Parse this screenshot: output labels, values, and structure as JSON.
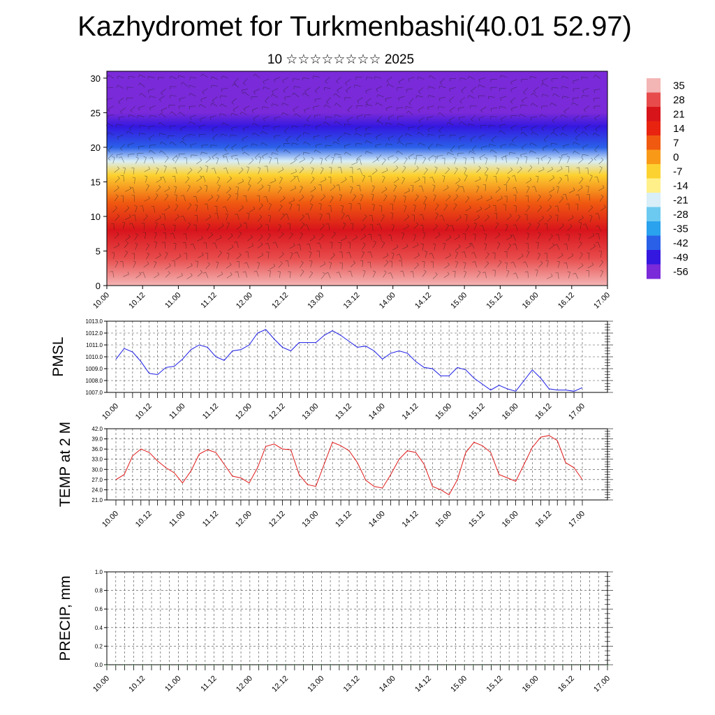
{
  "title": "Kazhydromet for Turkmenbashi(40.01 52.97)",
  "subtitle": "10 ☆☆☆☆☆☆☆☆ 2025",
  "time_ticks": [
    "10.00",
    "10.12",
    "11.00",
    "11.12",
    "12.00",
    "12.12",
    "13.00",
    "13.12",
    "14.00",
    "14.12",
    "15.00",
    "15.12",
    "16.00",
    "16.12",
    "17.00"
  ],
  "chart_data": [
    {
      "type": "heatmap",
      "title": "",
      "ylabel": "",
      "ylim": [
        0,
        31
      ],
      "yticks": [
        "0",
        "5",
        "10",
        "15",
        "20",
        "25",
        "30"
      ],
      "colorbar": {
        "labels": [
          "35",
          "28",
          "21",
          "14",
          "7",
          "0",
          "-7",
          "-14",
          "-21",
          "-28",
          "-35",
          "-42",
          "-49",
          "-56"
        ],
        "colors": [
          "#f4b5b5",
          "#e84b4b",
          "#d8141b",
          "#e82410",
          "#f05a10",
          "#f89a18",
          "#fcd230",
          "#fff08a",
          "#d8eef8",
          "#6ccaf0",
          "#2aa2ee",
          "#2a60e8",
          "#3418e0",
          "#7a2ad8"
        ]
      },
      "level_temperatures": [
        [
          0,
          33
        ],
        [
          4,
          30
        ],
        [
          8,
          20
        ],
        [
          12,
          5
        ],
        [
          16,
          -7
        ],
        [
          18,
          -20
        ],
        [
          20,
          -40
        ],
        [
          23,
          -52
        ],
        [
          25,
          -60
        ],
        [
          27,
          -58
        ],
        [
          31,
          -56
        ]
      ]
    },
    {
      "type": "line",
      "ylabel": "PMSL",
      "ylim": [
        1007.0,
        1013.0
      ],
      "yticks": [
        "1013.0",
        "1012.0",
        "1011.0",
        "1010.0",
        "1009.0",
        "1008.0",
        "1007.0"
      ],
      "color": "#1a1ae6",
      "values": [
        1009.8,
        1010.7,
        1010.4,
        1009.6,
        1008.6,
        1008.5,
        1009.1,
        1009.2,
        1009.8,
        1010.6,
        1011.0,
        1010.8,
        1010.0,
        1009.7,
        1010.5,
        1010.6,
        1011.0,
        1012.0,
        1012.3,
        1011.5,
        1010.8,
        1010.5,
        1011.2,
        1011.2,
        1011.2,
        1011.8,
        1012.2,
        1011.8,
        1011.3,
        1010.8,
        1010.9,
        1010.5,
        1009.8,
        1010.3,
        1010.5,
        1010.3,
        1009.6,
        1009.1,
        1009.0,
        1008.4,
        1008.4,
        1009.1,
        1008.9,
        1008.2,
        1007.7,
        1007.2,
        1007.6,
        1007.3,
        1007.1,
        1008.0,
        1008.9,
        1008.2,
        1007.3,
        1007.2,
        1007.2,
        1007.1,
        1007.4
      ]
    },
    {
      "type": "line",
      "ylabel": "TEMP at 2 M",
      "ylim": [
        21.0,
        42.0
      ],
      "yticks": [
        "42.0",
        "39.0",
        "36.0",
        "33.0",
        "30.0",
        "27.0",
        "24.0",
        "21.0"
      ],
      "color": "#e01a1a",
      "values": [
        27.0,
        28.5,
        34.0,
        36.0,
        35.0,
        32.5,
        30.5,
        29.0,
        26.0,
        29.5,
        34.5,
        35.8,
        35.0,
        31.5,
        28.0,
        27.5,
        26.0,
        30.5,
        36.8,
        37.5,
        36.0,
        35.8,
        28.5,
        25.5,
        25.0,
        31.5,
        38.0,
        37.0,
        35.5,
        32.0,
        26.8,
        25.0,
        24.5,
        28.5,
        33.0,
        35.5,
        35.0,
        31.5,
        25.0,
        24.0,
        22.5,
        27.0,
        35.0,
        38.0,
        37.0,
        35.0,
        28.5,
        27.5,
        26.5,
        31.5,
        36.5,
        39.5,
        40.0,
        38.5,
        32.0,
        30.5,
        27.0
      ]
    },
    {
      "type": "bar",
      "ylabel": "PRECIP, mm",
      "ylim": [
        0,
        1.0
      ],
      "yticks": [
        "1.0",
        "0.8",
        "0.6",
        "0.4",
        "0.2",
        "0.0"
      ],
      "values": [
        0,
        0,
        0,
        0,
        0,
        0,
        0,
        0,
        0,
        0,
        0,
        0,
        0,
        0,
        0,
        0,
        0,
        0,
        0,
        0,
        0,
        0,
        0,
        0,
        0,
        0,
        0,
        0,
        0,
        0,
        0,
        0,
        0,
        0,
        0,
        0,
        0,
        0,
        0,
        0,
        0,
        0,
        0,
        0,
        0,
        0,
        0,
        0,
        0,
        0,
        0,
        0,
        0,
        0,
        0,
        0,
        0
      ]
    }
  ]
}
